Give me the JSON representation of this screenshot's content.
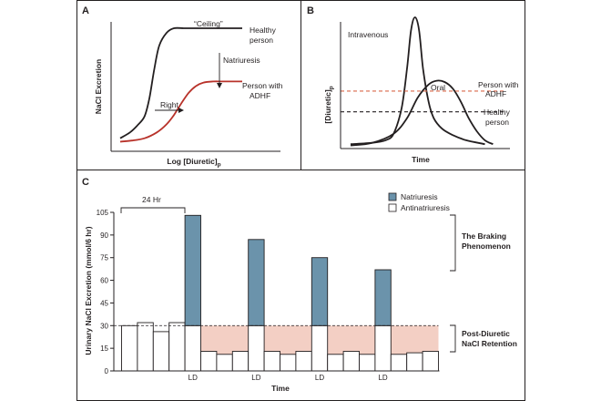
{
  "panels": [
    {
      "letter": "A",
      "x_label": "Log [Diuretic]",
      "x_label_sub": "p",
      "y_label": "NaCl Excretion",
      "annotations": {
        "ceiling": "“Ceiling”",
        "healthy_line1": "Healthy",
        "healthy_line2": "person",
        "natriuresis": "Natriuresis",
        "adhf_line1": "Person with",
        "adhf_line2": "ADHF",
        "right": "Right"
      }
    },
    {
      "letter": "B",
      "x_label": "Time",
      "y_label": "[Diuretic]",
      "y_label_sub": "p",
      "annotations": {
        "intravenous": "Intravenous",
        "oral": "Oral",
        "adhf_line1": "Person with",
        "adhf_line2": "ADHF",
        "healthy_line1": "Healthy",
        "healthy_line2": "person"
      }
    },
    {
      "letter": "C",
      "annotations": {
        "period": "24 Hr",
        "braking_line1": "The Braking",
        "braking_line2": "Phenomenon",
        "retention_line1": "Post-Diuretic",
        "retention_line2": "NaCl Retention"
      }
    }
  ],
  "chart_data": [
    {
      "type": "line",
      "title": "A",
      "xlabel": "Log [Diuretic]p",
      "ylabel": "NaCl Excretion",
      "series": [
        {
          "name": "Healthy person",
          "color": "#231f20",
          "x": [
            0.0,
            0.4,
            0.7,
            1.0,
            1.2,
            1.4,
            1.6,
            1.9,
            2.2,
            2.6,
            3.0,
            3.6,
            4.2,
            5.0
          ],
          "y": [
            0.05,
            0.1,
            0.16,
            0.24,
            0.4,
            0.65,
            0.85,
            0.96,
            1.0,
            1.0,
            1.0,
            1.0,
            1.0,
            1.0
          ]
        },
        {
          "name": "Person with ADHF",
          "color": "#b8322a",
          "x": [
            0.0,
            0.5,
            1.0,
            1.5,
            1.9,
            2.2,
            2.5,
            2.8,
            3.1,
            3.4,
            3.8,
            4.2,
            4.6,
            5.0
          ],
          "y": [
            0.02,
            0.03,
            0.05,
            0.1,
            0.17,
            0.25,
            0.35,
            0.44,
            0.5,
            0.53,
            0.54,
            0.54,
            0.54,
            0.54
          ]
        }
      ],
      "annotations": [
        "“Ceiling”",
        "Natriuresis",
        "Right"
      ]
    },
    {
      "type": "line",
      "title": "B",
      "xlabel": "Time",
      "ylabel": "[Diuretic]p",
      "series": [
        {
          "name": "Intravenous",
          "color": "#231f20",
          "x": [
            0.0,
            0.8,
            1.3,
            1.6,
            1.9,
            2.1,
            2.25,
            2.4,
            2.55,
            2.7,
            2.9,
            3.1,
            3.4,
            3.8,
            4.3,
            5.0
          ],
          "y": [
            0.02,
            0.03,
            0.05,
            0.1,
            0.3,
            0.6,
            0.9,
            1.0,
            0.9,
            0.6,
            0.35,
            0.22,
            0.14,
            0.09,
            0.05,
            0.02
          ]
        },
        {
          "name": "Oral",
          "color": "#231f20",
          "x": [
            0.0,
            0.8,
            1.6,
            2.1,
            2.5,
            2.9,
            3.2,
            3.5,
            3.8,
            4.1,
            4.4,
            4.7,
            5.0,
            5.3
          ],
          "y": [
            0.01,
            0.03,
            0.1,
            0.22,
            0.38,
            0.48,
            0.51,
            0.5,
            0.45,
            0.35,
            0.22,
            0.12,
            0.05,
            0.02
          ]
        },
        {
          "name": "Threshold, person with ADHF",
          "color": "#d9684a",
          "dashed": true,
          "x": [
            0.0,
            5.3
          ],
          "y": [
            0.43,
            0.43
          ]
        },
        {
          "name": "Threshold, healthy person",
          "color": "#231f20",
          "dashed": true,
          "x": [
            0.0,
            5.3
          ],
          "y": [
            0.27,
            0.27
          ]
        }
      ]
    },
    {
      "type": "bar",
      "title": "C",
      "xlabel": "Time",
      "ylabel": "Urinary NaCl Excretion (mmol/6 hr)",
      "ylim": [
        0,
        105
      ],
      "yticks": [
        0,
        15,
        30,
        45,
        60,
        75,
        90,
        105
      ],
      "baseline": 30,
      "series": [
        {
          "name": "Antinatriuresis",
          "color": "#ffffff",
          "values": [
            30,
            32,
            26,
            32,
            30,
            13,
            11,
            13,
            30,
            13,
            11,
            13,
            30,
            11,
            13,
            11,
            30,
            11,
            12,
            13
          ]
        },
        {
          "name": "Natriuresis",
          "color": "#6b93ab",
          "values": [
            0,
            0,
            0,
            0,
            73,
            0,
            0,
            0,
            57,
            0,
            0,
            0,
            45,
            0,
            0,
            0,
            37,
            0,
            0,
            0
          ]
        }
      ],
      "ld_label": "LD",
      "ld_bars": [
        4,
        8,
        12,
        16
      ],
      "legend": [
        "Natriuresis",
        "Antinatriuresis"
      ],
      "legend_position": "top-right"
    }
  ]
}
